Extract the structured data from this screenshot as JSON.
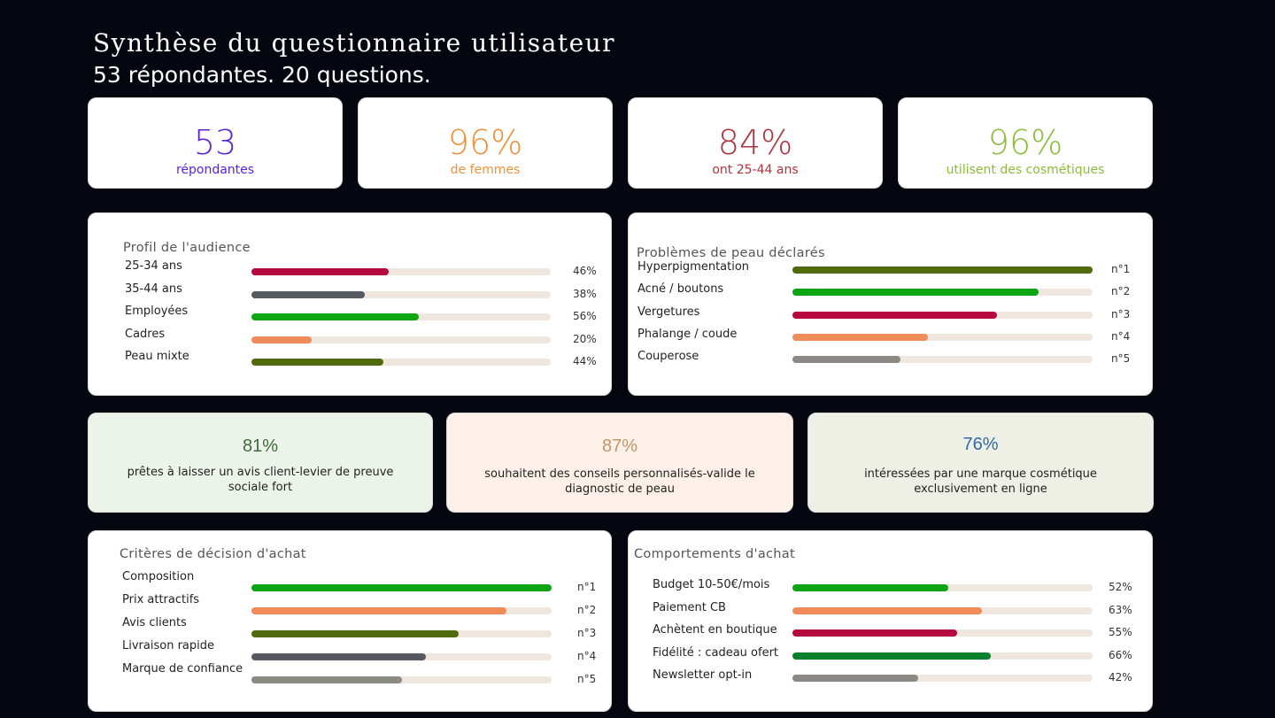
{
  "header": {
    "title": "Synthèse du questionnaire utilisateur",
    "subtitle": "53 répondantes. 20 questions."
  },
  "stats": [
    {
      "value": "53",
      "label": "répondantes",
      "color": "#5a22d9"
    },
    {
      "value": "96%",
      "label": "de femmes",
      "color": "#f0913a"
    },
    {
      "value": "84%",
      "label": "ont 25-44 ans",
      "color": "#b0323c"
    },
    {
      "value": "96%",
      "label": "utilisent des cosmétiques",
      "color": "#8dbb3c"
    }
  ],
  "audience": {
    "title": "Profil de l'audience",
    "rows": [
      {
        "label": "25-34 ans",
        "value": "46%",
        "fill": 0.46,
        "color": "#b5093f"
      },
      {
        "label": "35-44 ans",
        "value": "38%",
        "fill": 0.38,
        "color": "#555a60"
      },
      {
        "label": "Employées",
        "value": "56%",
        "fill": 0.56,
        "color": "#0ea514"
      },
      {
        "label": "Cadres",
        "value": "20%",
        "fill": 0.2,
        "color": "#f08c5a"
      },
      {
        "label": "Peau mixte",
        "value": "44%",
        "fill": 0.44,
        "color": "#4f6b0d"
      }
    ]
  },
  "skin": {
    "title": "Problèmes de peau déclarés",
    "rows": [
      {
        "label": "Hyperpigmentation",
        "value": "n°1",
        "fill": 1.0,
        "color": "#4f6b0d"
      },
      {
        "label": "Acné / boutons",
        "value": "n°2",
        "fill": 0.82,
        "color": "#0ea514"
      },
      {
        "label": "Vergetures",
        "value": "n°3",
        "fill": 0.68,
        "color": "#b5093f"
      },
      {
        "label": "Phalange / coude",
        "value": "n°4",
        "fill": 0.45,
        "color": "#f08c5a"
      },
      {
        "label": "Couperose",
        "value": "n°5",
        "fill": 0.36,
        "color": "#8c8985"
      }
    ]
  },
  "insights": [
    {
      "value": "81%",
      "text": "prêtes à laisser un avis client-levier de preuve sociale fort",
      "color": "#3f6b3a",
      "bg": "#ecf4ea"
    },
    {
      "value": "87%",
      "text": "souhaitent des conseils personnalisés-valide le diagnostic de peau",
      "color": "#c0966a",
      "bg": "#fcf0e8"
    },
    {
      "value": "76%",
      "text": "intéressées par une marque cosmétique exclusivement en ligne",
      "color": "#2e6aa8",
      "bg": "#eef0e6"
    }
  ],
  "criteria": {
    "title": "Critères de décision d'achat",
    "rows": [
      {
        "label": "Composition",
        "value": "n°1",
        "fill": 1.0,
        "color": "#0ea514"
      },
      {
        "label": "Prix attractifs",
        "value": "n°2",
        "fill": 0.85,
        "color": "#f08c5a"
      },
      {
        "label": "Avis clients",
        "value": "n°3",
        "fill": 0.69,
        "color": "#4f6b0d"
      },
      {
        "label": "Livraison rapide",
        "value": "n°4",
        "fill": 0.58,
        "color": "#555a60"
      },
      {
        "label": "Marque de confiance",
        "value": "n°5",
        "fill": 0.5,
        "color": "#8c8985"
      }
    ]
  },
  "behavior": {
    "title": "Comportements d'achat",
    "rows": [
      {
        "label": "Budget 10-50€/mois",
        "value": "52%",
        "fill": 0.52,
        "color": "#0ea514"
      },
      {
        "label": "Paiement CB",
        "value": "63%",
        "fill": 0.63,
        "color": "#f08c5a"
      },
      {
        "label": "Achètent en boutique",
        "value": "55%",
        "fill": 0.55,
        "color": "#b5093f"
      },
      {
        "label": "Fidélité : cadeau ofert",
        "value": "66%",
        "fill": 0.66,
        "color": "#06802a"
      },
      {
        "label": "Newsletter opt-in",
        "value": "42%",
        "fill": 0.42,
        "color": "#8c8985"
      }
    ]
  }
}
